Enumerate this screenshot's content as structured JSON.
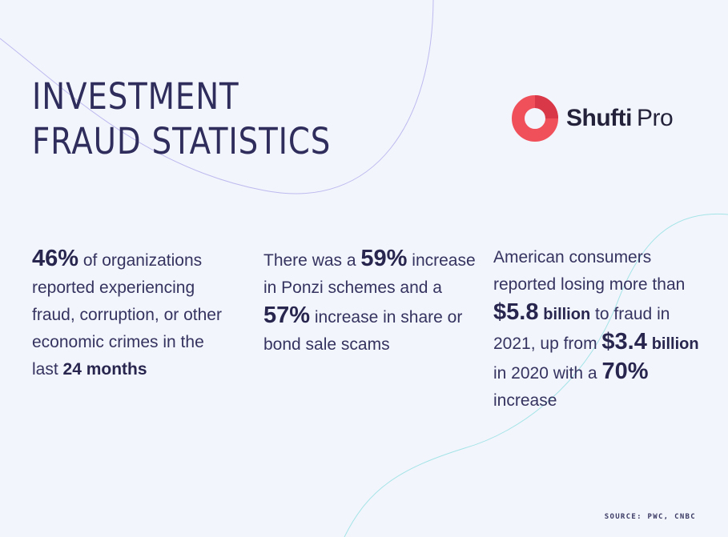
{
  "title": {
    "line1": "INVESTMENT",
    "line2": "FRAUD STATISTICS"
  },
  "logo": {
    "icon": "shufti-pro-ring-logo",
    "word1": "Shufti",
    "word2": "Pro",
    "colors": {
      "ring": "#f0505a",
      "ring_dark": "#d83848"
    }
  },
  "stats": [
    {
      "figure": "46%",
      "text_a": " of organizations reported experiencing fraud, corruption, or other economic crimes in the last ",
      "emphasis": "24 months"
    },
    {
      "text_a": "There was a ",
      "figure_a": "59%",
      "text_b": " increase in Ponzi schemes and a ",
      "figure_b": "57%",
      "text_c": " increase in share or bond sale scams"
    },
    {
      "text_a": "American consumers reported losing more than ",
      "figure_a": "$5.8",
      "unit_a": "billion",
      "text_b": " to fraud in 2021, up from ",
      "figure_b": "$3.4",
      "unit_b": "billion",
      "text_c": " in 2020 with a ",
      "figure_c": "70%",
      "text_d": " increase"
    }
  ],
  "source": "SOURCE: PWC, CNBC",
  "colors": {
    "background": "#f3f5fd",
    "text": "#2f2d5c",
    "curve_purple": "#b9b6ea",
    "curve_teal": "#9fe3e3"
  }
}
